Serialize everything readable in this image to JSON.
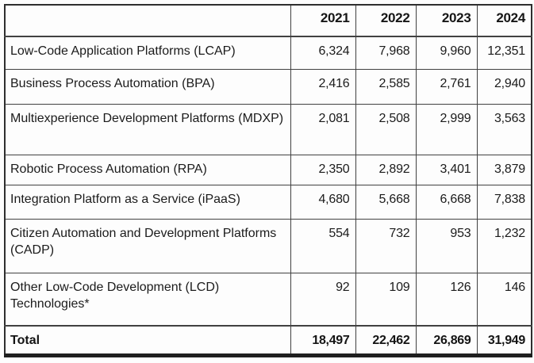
{
  "colors": {
    "background": "#fdfdfd",
    "text": "#1b1b1b",
    "grid_border": "#414141",
    "outer_border": "#2e2e2e",
    "bottom_rule": "#1f1f1f"
  },
  "table": {
    "columns": [
      "",
      "2021",
      "2022",
      "2023",
      "2024"
    ],
    "rows": [
      {
        "label": "Low-Code Application Platforms (LCAP)",
        "values": [
          "6,324",
          "7,968",
          "9,960",
          "12,351"
        ]
      },
      {
        "label": "Business Process Automation (BPA)",
        "values": [
          "2,416",
          "2,585",
          "2,761",
          "2,940"
        ]
      },
      {
        "label": "Multiexperience Development Platforms (MDXP)",
        "values": [
          "2,081",
          "2,508",
          "2,999",
          "3,563"
        ]
      },
      {
        "label": "Robotic Process Automation (RPA)",
        "values": [
          "2,350",
          "2,892",
          "3,401",
          "3,879"
        ]
      },
      {
        "label": "Integration Platform as a Service (iPaaS)",
        "values": [
          "4,680",
          "5,668",
          "6,668",
          "7,838"
        ]
      },
      {
        "label": "Citizen Automation and Development Platforms (CADP)",
        "values": [
          "554",
          "732",
          "953",
          "1,232"
        ]
      },
      {
        "label": "Other Low-Code Development (LCD) Technologies*",
        "values": [
          "92",
          "109",
          "126",
          "146"
        ]
      }
    ],
    "total_row": {
      "label": "Total",
      "values": [
        "18,497",
        "22,462",
        "26,869",
        "31,949"
      ]
    }
  },
  "chart_data": {
    "type": "table",
    "title": "",
    "categories": [
      2021,
      2022,
      2023,
      2024
    ],
    "series": [
      {
        "name": "Low-Code Application Platforms (LCAP)",
        "values": [
          6324,
          7968,
          9960,
          12351
        ]
      },
      {
        "name": "Business Process Automation (BPA)",
        "values": [
          2416,
          2585,
          2761,
          2940
        ]
      },
      {
        "name": "Multiexperience Development Platforms (MDXP)",
        "values": [
          2081,
          2508,
          2999,
          3563
        ]
      },
      {
        "name": "Robotic Process Automation (RPA)",
        "values": [
          2350,
          2892,
          3401,
          3879
        ]
      },
      {
        "name": "Integration Platform as a Service (iPaaS)",
        "values": [
          4680,
          5668,
          6668,
          7838
        ]
      },
      {
        "name": "Citizen Automation and Development Platforms (CADP)",
        "values": [
          554,
          732,
          953,
          1232
        ]
      },
      {
        "name": "Other Low-Code Development (LCD) Technologies*",
        "values": [
          92,
          109,
          126,
          146
        ]
      },
      {
        "name": "Total",
        "values": [
          18497,
          22462,
          26869,
          31949
        ]
      }
    ],
    "layout_hints": {
      "header_row_bold": true,
      "total_row_bold": true,
      "numbers_right_aligned": true,
      "thick_bottom_border": true,
      "grid": "full"
    }
  }
}
